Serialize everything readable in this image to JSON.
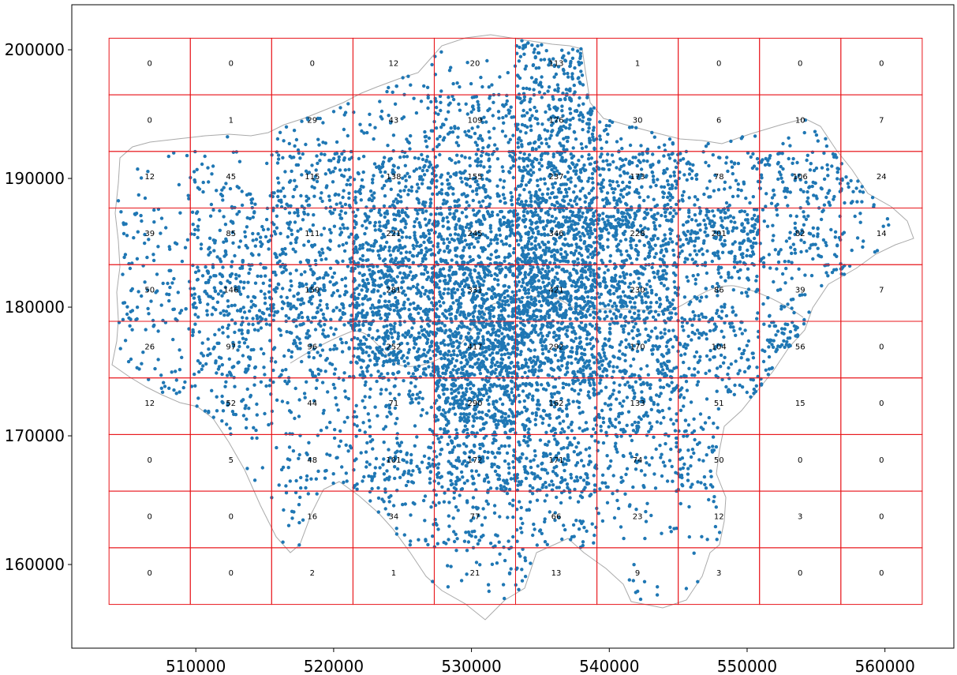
{
  "chart_data": {
    "type": "scatter",
    "title": "",
    "xlabel": "",
    "ylabel": "",
    "xlim": [
      501000,
      565000
    ],
    "ylim": [
      153500,
      203500
    ],
    "x_ticks": [
      510000,
      520000,
      530000,
      540000,
      550000,
      560000
    ],
    "y_ticks": [
      160000,
      170000,
      180000,
      190000,
      200000
    ],
    "x_tick_labels": [
      "510000",
      "520000",
      "530000",
      "540000",
      "550000",
      "560000"
    ],
    "y_tick_labels": [
      "160000",
      "170000",
      "180000",
      "190000",
      "200000"
    ],
    "grid_overlay": {
      "x_edges": [
        503700,
        509600,
        515500,
        521400,
        527300,
        533200,
        539100,
        545000,
        550900,
        556800,
        562700
      ],
      "y_edges": [
        156900,
        161300,
        165700,
        170100,
        174500,
        178900,
        183300,
        187700,
        192100,
        196500,
        200900
      ],
      "edge_color": "#e8161b",
      "counts": [
        [
          "0",
          "0",
          "0",
          "12",
          "20",
          "113",
          "1",
          "0",
          "0",
          "0"
        ],
        [
          "0",
          "1",
          "29",
          "43",
          "109",
          "176",
          "30",
          "6",
          "10",
          "7"
        ],
        [
          "12",
          "45",
          "115",
          "138",
          "155",
          "237",
          "173",
          "78",
          "106",
          "24"
        ],
        [
          "39",
          "85",
          "111",
          "221",
          "245",
          "346",
          "228",
          "201",
          "82",
          "14"
        ],
        [
          "50",
          "146",
          "159",
          "281",
          "331",
          "421",
          "230",
          "86",
          "39",
          "7"
        ],
        [
          "26",
          "97",
          "96",
          "252",
          "417",
          "292",
          "170",
          "104",
          "56",
          "0"
        ],
        [
          "12",
          "52",
          "44",
          "71",
          "290",
          "162",
          "133",
          "51",
          "15",
          "0"
        ],
        [
          "0",
          "5",
          "48",
          "101",
          "172",
          "171",
          "74",
          "50",
          "0",
          "0"
        ],
        [
          "0",
          "0",
          "16",
          "34",
          "77",
          "66",
          "23",
          "12",
          "3",
          "0"
        ],
        [
          "0",
          "0",
          "2",
          "1",
          "21",
          "13",
          "9",
          "3",
          "0",
          "0"
        ]
      ]
    },
    "boundary_color": "#aaaaaa",
    "point_color": "#1f77b4",
    "grid": false,
    "legend": "none"
  }
}
